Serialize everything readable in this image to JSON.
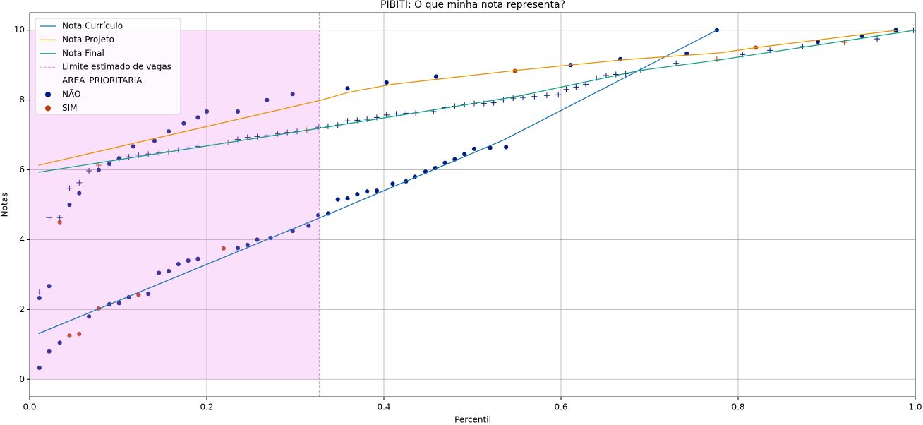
{
  "chart_data": {
    "type": "line",
    "title": "PIBITI: O que minha nota representa?",
    "x_label": "Percentil",
    "y_label": "Notas",
    "xlim": [
      0,
      1
    ],
    "ylim": [
      -0.5,
      10.5
    ],
    "xticks": [
      {
        "value": 0,
        "label": "0.0"
      },
      0.2,
      0.4,
      0.6,
      0.8,
      {
        "value": 1,
        "label": "1.0"
      }
    ],
    "yticks": [
      0,
      2,
      4,
      6,
      8,
      10
    ],
    "grid": true,
    "legend": "upper left",
    "series": [
      {
        "name": "Nota Currículo",
        "color": "#1a73b0",
        "x": [
          0.01,
          0.33,
          0.535,
          0.776
        ],
        "values": [
          1.31,
          4.65,
          6.85,
          10.0
        ]
      },
      {
        "name": "Nota Projeto",
        "color": "#e69500",
        "x": [
          0.01,
          0.33,
          0.36,
          0.41,
          0.55,
          0.67,
          0.78,
          0.82,
          0.98
        ],
        "values": [
          6.13,
          8.0,
          8.22,
          8.45,
          8.85,
          9.15,
          9.35,
          9.5,
          10.0
        ]
      },
      {
        "name": "Nota Final",
        "color": "#17a085",
        "x": [
          0.01,
          0.33,
          0.55,
          0.69,
          0.78,
          1.0
        ],
        "values": [
          5.93,
          7.2,
          8.1,
          8.85,
          9.15,
          10.0
        ]
      }
    ],
    "limit": {
      "name": "Limite estimado de vagas",
      "color": "#ee82ee",
      "x": 0.327,
      "shade_y": [
        0,
        10
      ]
    },
    "group_title": "AREA_PRIORITARIA",
    "groups": [
      {
        "name": "NÃO",
        "color": "#001c7f",
        "x": [
          0.011,
          0.022,
          0.034,
          0.067,
          0.09,
          0.101,
          0.112,
          0.134,
          0.146,
          0.157,
          0.168,
          0.179,
          0.19,
          0.235,
          0.246,
          0.257,
          0.272,
          0.297,
          0.315,
          0.326,
          0.337,
          0.348,
          0.359,
          0.37,
          0.381,
          0.392,
          0.41,
          0.425,
          0.435,
          0.447,
          0.458,
          0.469,
          0.48,
          0.491,
          0.502,
          0.52,
          0.538,
          0.776,
          0.011,
          0.022,
          0.045,
          0.056,
          0.078,
          0.09,
          0.101,
          0.117,
          0.141,
          0.157,
          0.174,
          0.19,
          0.2,
          0.235,
          0.268,
          0.297,
          0.359,
          0.403,
          0.459,
          0.611,
          0.667,
          0.742,
          0.89,
          0.94,
          0.978
        ],
        "values": [
          0.33,
          0.8,
          1.05,
          1.8,
          2.15,
          2.18,
          2.35,
          2.45,
          3.05,
          3.1,
          3.3,
          3.4,
          3.45,
          3.76,
          3.85,
          4.0,
          4.05,
          4.25,
          4.4,
          4.7,
          4.75,
          5.15,
          5.18,
          5.3,
          5.38,
          5.4,
          5.6,
          5.67,
          5.8,
          5.95,
          6.05,
          6.2,
          6.3,
          6.45,
          6.6,
          6.63,
          6.65,
          10.0,
          2.33,
          2.67,
          5.0,
          5.33,
          6.0,
          6.17,
          6.33,
          6.67,
          6.83,
          7.1,
          7.33,
          7.5,
          7.67,
          7.67,
          8.0,
          8.17,
          8.33,
          8.5,
          8.67,
          9.0,
          9.17,
          9.33,
          9.67,
          9.83,
          10.0
        ],
        "plus_x": [
          0.011,
          0.022,
          0.034,
          0.045,
          0.056,
          0.067,
          0.101,
          0.112,
          0.123,
          0.134,
          0.146,
          0.157,
          0.168,
          0.179,
          0.19,
          0.209,
          0.235,
          0.246,
          0.257,
          0.268,
          0.28,
          0.291,
          0.302,
          0.326,
          0.337,
          0.348,
          0.359,
          0.37,
          0.381,
          0.392,
          0.403,
          0.414,
          0.425,
          0.436,
          0.456,
          0.469,
          0.48,
          0.491,
          0.502,
          0.513,
          0.524,
          0.535,
          0.546,
          0.557,
          0.57,
          0.584,
          0.597,
          0.606,
          0.617,
          0.628,
          0.64,
          0.651,
          0.662,
          0.673,
          0.69,
          0.73,
          0.805,
          0.836,
          0.873,
          0.957,
          0.98,
          0.998
        ],
        "plus_values": [
          2.5,
          4.63,
          4.63,
          5.47,
          5.63,
          5.97,
          6.3,
          6.37,
          6.42,
          6.45,
          6.48,
          6.52,
          6.57,
          6.63,
          6.67,
          6.72,
          6.87,
          6.93,
          6.95,
          6.98,
          7.03,
          7.07,
          7.1,
          7.22,
          7.25,
          7.28,
          7.4,
          7.42,
          7.45,
          7.5,
          7.57,
          7.6,
          7.62,
          7.63,
          7.67,
          7.78,
          7.82,
          7.87,
          7.9,
          7.9,
          7.92,
          8.0,
          8.05,
          8.07,
          8.1,
          8.13,
          8.15,
          8.3,
          8.37,
          8.45,
          8.63,
          8.7,
          8.73,
          8.75,
          8.85,
          9.05,
          9.3,
          9.42,
          9.53,
          9.75,
          10.0,
          10.0
        ]
      },
      {
        "name": "SIM",
        "color": "#b1400d",
        "x": [
          0.045,
          0.056,
          0.078,
          0.123,
          0.219,
          0.034,
          0.548,
          0.82
        ],
        "values": [
          1.25,
          1.3,
          2.03,
          2.42,
          3.75,
          4.5,
          8.83,
          9.5
        ],
        "plus_x": [
          0.078,
          0.224,
          0.313,
          0.776,
          0.92
        ],
        "plus_values": [
          6.13,
          6.78,
          7.13,
          9.17,
          9.65
        ]
      }
    ]
  }
}
